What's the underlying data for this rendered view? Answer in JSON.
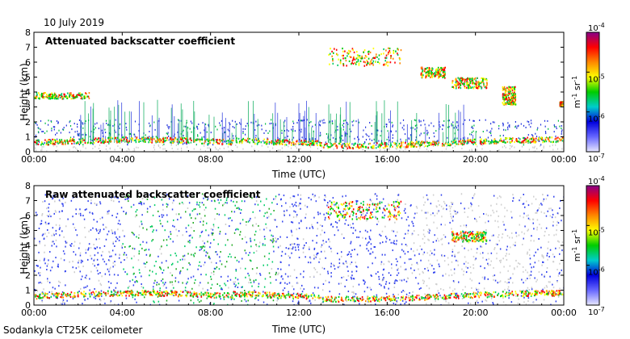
{
  "date": "10 July 2019",
  "instrument": "Sodankyla CT25K ceilometer",
  "colors": {
    "accent_cloud": "#cc0000",
    "sparse": "#2233dd",
    "noise": "#c8c8c8"
  },
  "colorbar": {
    "unit_main": "m",
    "unit_exp1": "-1",
    "unit_mid": " sr",
    "unit_exp2": "-1",
    "ticks": [
      {
        "value": -7,
        "base": "10",
        "exp": "-7"
      },
      {
        "value": -6,
        "base": "10",
        "exp": "-6"
      },
      {
        "value": -5,
        "base": "10",
        "exp": "-5"
      },
      {
        "value": -4,
        "base": "10",
        "exp": "-4"
      }
    ],
    "scale": "log",
    "range": [
      -7,
      -4
    ],
    "gradient": [
      "#e8e8ff",
      "#6666ff",
      "#0000dd",
      "#00cccc",
      "#00cc00",
      "#ffff00",
      "#ff8800",
      "#ff0000",
      "#880088"
    ]
  },
  "chart_data": [
    {
      "type": "heatmap",
      "title": "Attenuated backscatter coefficient",
      "xlabel": "Time (UTC)",
      "ylabel": "Height (km)",
      "xlim": [
        0,
        24
      ],
      "ylim": [
        0,
        8
      ],
      "x_ticks": [
        "00:00",
        "04:00",
        "08:00",
        "12:00",
        "16:00",
        "20:00",
        "00:00"
      ],
      "y_ticks": [
        "0",
        "1",
        "2",
        "3",
        "4",
        "5",
        "6",
        "7",
        "8"
      ],
      "features": [
        {
          "name": "boundary layer",
          "t": [
            0,
            24
          ],
          "h": [
            0.45,
            0.9
          ]
        },
        {
          "name": "low cloud",
          "t": [
            0,
            2.5
          ],
          "h": [
            3.6,
            4.0
          ]
        },
        {
          "name": "mid cloud",
          "t": [
            13.3,
            16.6
          ],
          "h": [
            5.8,
            7.0
          ]
        },
        {
          "name": "mid cloud",
          "t": [
            17.5,
            18.6
          ],
          "h": [
            5.0,
            5.7
          ]
        },
        {
          "name": "mid cloud",
          "t": [
            18.9,
            20.5
          ],
          "h": [
            4.3,
            5.0
          ]
        },
        {
          "name": "cloud",
          "t": [
            21.2,
            21.8
          ],
          "h": [
            3.2,
            4.4
          ]
        },
        {
          "name": "cloud",
          "t": [
            23.8,
            24
          ],
          "h": [
            3.1,
            3.4
          ]
        }
      ]
    },
    {
      "type": "heatmap",
      "title": "Raw attenuated backscatter coefficient",
      "xlabel": "Time (UTC)",
      "ylabel": "Height (km)",
      "xlim": [
        0,
        24
      ],
      "ylim": [
        0,
        8
      ],
      "x_ticks": [
        "00:00",
        "04:00",
        "08:00",
        "12:00",
        "16:00",
        "20:00",
        "00:00"
      ],
      "y_ticks": [
        "0",
        "1",
        "2",
        "3",
        "4",
        "5",
        "6",
        "7",
        "8"
      ],
      "features": [
        {
          "name": "background noise",
          "t": [
            0,
            24
          ],
          "h": [
            0,
            7.5
          ]
        },
        {
          "name": "boundary layer",
          "t": [
            0,
            24
          ],
          "h": [
            0.4,
            1.0
          ]
        },
        {
          "name": "mid cloud",
          "t": [
            13.3,
            16.6
          ],
          "h": [
            5.8,
            7.0
          ]
        },
        {
          "name": "mid cloud",
          "t": [
            18.9,
            20.5
          ],
          "h": [
            4.3,
            5.0
          ]
        }
      ]
    }
  ]
}
